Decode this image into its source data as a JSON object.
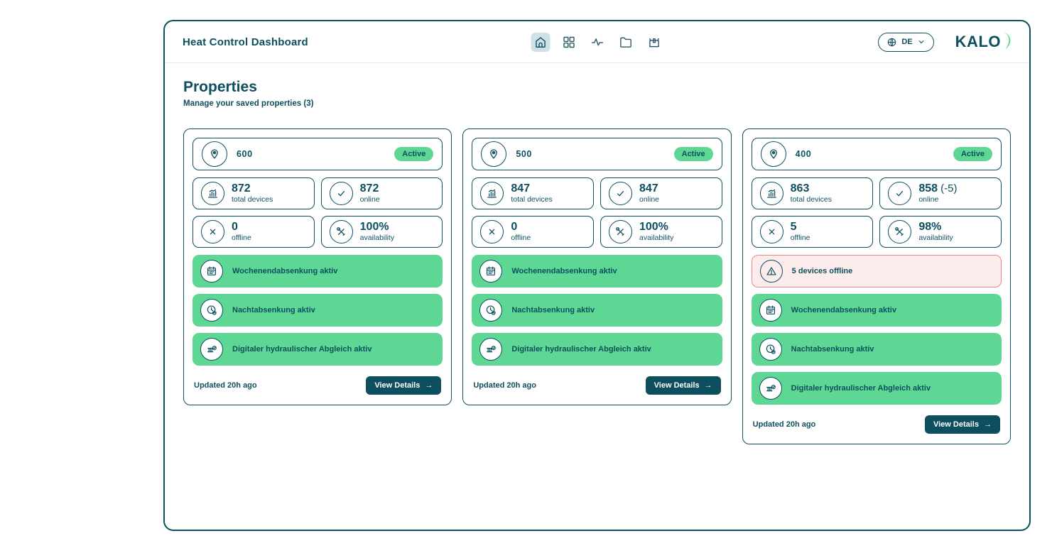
{
  "colors": {
    "teal": "#0d4f5f",
    "green": "#5ed794",
    "nav_active_bg": "#cfe1e7",
    "alert_bg": "#fdecec",
    "alert_border": "#ef8585"
  },
  "header": {
    "title": "Heat Control Dashboard",
    "nav": [
      {
        "icon": "home-icon",
        "active": true
      },
      {
        "icon": "grid-icon",
        "active": false
      },
      {
        "icon": "activity-icon",
        "active": false
      },
      {
        "icon": "folder-icon",
        "active": false
      },
      {
        "icon": "box-icon",
        "active": false
      }
    ],
    "language_selector": {
      "code": "DE"
    },
    "logo_text": "KALO"
  },
  "page": {
    "title": "Properties",
    "subtitle": "Manage your saved properties (3)"
  },
  "cards": [
    {
      "property_number": "600",
      "status_badge": "Active",
      "stats": [
        {
          "icon": "bar-chart-icon",
          "value": "872",
          "suffix": "",
          "label": "total devices"
        },
        {
          "icon": "check-circle-icon",
          "value": "872",
          "suffix": "",
          "label": "online"
        },
        {
          "icon": "x-circle-icon",
          "value": "0",
          "suffix": "",
          "label": "offline"
        },
        {
          "icon": "tools-icon",
          "value": "100%",
          "suffix": "",
          "label": "availability"
        }
      ],
      "alerts": [],
      "features": [
        {
          "icon": "calendar-icon",
          "label": "Wochenendabsenkung aktiv"
        },
        {
          "icon": "clock-icon",
          "label": "Nachtabsenkung aktiv"
        },
        {
          "icon": "radiator-check-icon",
          "label": "Digitaler hydraulischer Abgleich aktiv"
        }
      ],
      "updated": "Updated 20h ago",
      "details_button": {
        "label": "View Details",
        "arrow": "→"
      }
    },
    {
      "property_number": "500",
      "status_badge": "Active",
      "stats": [
        {
          "icon": "bar-chart-icon",
          "value": "847",
          "suffix": "",
          "label": "total devices"
        },
        {
          "icon": "check-circle-icon",
          "value": "847",
          "suffix": "",
          "label": "online"
        },
        {
          "icon": "x-circle-icon",
          "value": "0",
          "suffix": "",
          "label": "offline"
        },
        {
          "icon": "tools-icon",
          "value": "100%",
          "suffix": "",
          "label": "availability"
        }
      ],
      "alerts": [],
      "features": [
        {
          "icon": "calendar-icon",
          "label": "Wochenendabsenkung aktiv"
        },
        {
          "icon": "clock-icon",
          "label": "Nachtabsenkung aktiv"
        },
        {
          "icon": "radiator-check-icon",
          "label": "Digitaler hydraulischer Abgleich aktiv"
        }
      ],
      "updated": "Updated 20h ago",
      "details_button": {
        "label": "View Details",
        "arrow": "→"
      }
    },
    {
      "property_number": "400",
      "status_badge": "Active",
      "stats": [
        {
          "icon": "bar-chart-icon",
          "value": "863",
          "suffix": "",
          "label": "total devices"
        },
        {
          "icon": "check-circle-icon",
          "value": "858",
          "suffix": "(-5)",
          "label": "online"
        },
        {
          "icon": "x-circle-icon",
          "value": "5",
          "suffix": "",
          "label": "offline"
        },
        {
          "icon": "tools-icon",
          "value": "98%",
          "suffix": "",
          "label": "availability"
        }
      ],
      "alerts": [
        {
          "icon": "warning-icon",
          "label": "5 devices offline"
        }
      ],
      "features": [
        {
          "icon": "calendar-icon",
          "label": "Wochenendabsenkung aktiv"
        },
        {
          "icon": "clock-icon",
          "label": "Nachtabsenkung aktiv"
        },
        {
          "icon": "radiator-check-icon",
          "label": "Digitaler hydraulischer Abgleich aktiv"
        }
      ],
      "updated": "Updated 20h ago",
      "details_button": {
        "label": "View Details",
        "arrow": "→"
      }
    }
  ]
}
